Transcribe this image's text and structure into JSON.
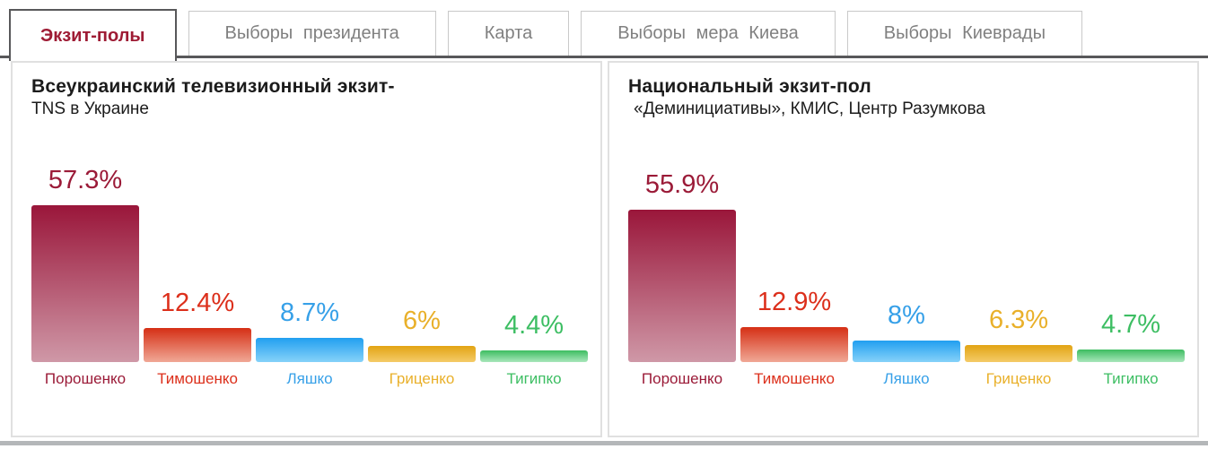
{
  "tab_bar": {
    "tabs": [
      {
        "label": "Экзит-полы",
        "active": true
      },
      {
        "label": "Выборы президента",
        "active": false
      },
      {
        "label": "Карта",
        "active": false
      },
      {
        "label": "Выборы мера Киева",
        "active": false
      },
      {
        "label": "Выборы Киеврады",
        "active": false
      }
    ]
  },
  "colors": {
    "active_tab_text": "#9e1b34",
    "inactive_tab_text": "#808080",
    "tab_bar_line": "#58585a",
    "panel_border": "#e0e0e0",
    "bottom_strip": "#b4b7b9",
    "title_text": "#1b1b1b"
  },
  "series_colors": [
    {
      "name": "maroon",
      "bar_top": "#9a163a",
      "bar_bottom": "#cf98a7",
      "text": "#9b1b38"
    },
    {
      "name": "red",
      "bar_top": "#d52f15",
      "bar_bottom": "#f0a896",
      "text": "#dc2f1b"
    },
    {
      "name": "blue",
      "bar_top": "#219ff0",
      "bar_bottom": "#86d2f9",
      "text": "#36a0e8"
    },
    {
      "name": "gold",
      "bar_top": "#e2a413",
      "bar_bottom": "#f4cb68",
      "text": "#e9b02a"
    },
    {
      "name": "green",
      "bar_top": "#3dbd61",
      "bar_bottom": "#a9e7bb",
      "text": "#3dbe63"
    }
  ],
  "chart_data": [
    {
      "type": "bar",
      "title": "Всеукраинский телевизионный экзит-",
      "subtitle": "TNS в Украине",
      "categories": [
        "Порошенко",
        "Тимошенко",
        "Ляшко",
        "Гриценко",
        "Тигипко"
      ],
      "values": [
        57.3,
        12.4,
        8.7,
        6,
        4.4
      ],
      "value_labels": [
        "57.3%",
        "12.4%",
        "8.7%",
        "6%",
        "4.4%"
      ],
      "ylim": [
        0,
        60
      ],
      "grid": false,
      "legend": "none"
    },
    {
      "type": "bar",
      "title": "Национальный экзит-пол",
      "subtitle": "«Деминициативы», КМИС, Центр Разумкова",
      "categories": [
        "Порошенко",
        "Тимошенко",
        "Ляшко",
        "Гриценко",
        "Тигипко"
      ],
      "values": [
        55.9,
        12.9,
        8,
        6.3,
        4.7
      ],
      "value_labels": [
        "55.9%",
        "12.9%",
        "8%",
        "6.3%",
        "4.7%"
      ],
      "ylim": [
        0,
        60
      ],
      "grid": false,
      "legend": "none"
    }
  ]
}
